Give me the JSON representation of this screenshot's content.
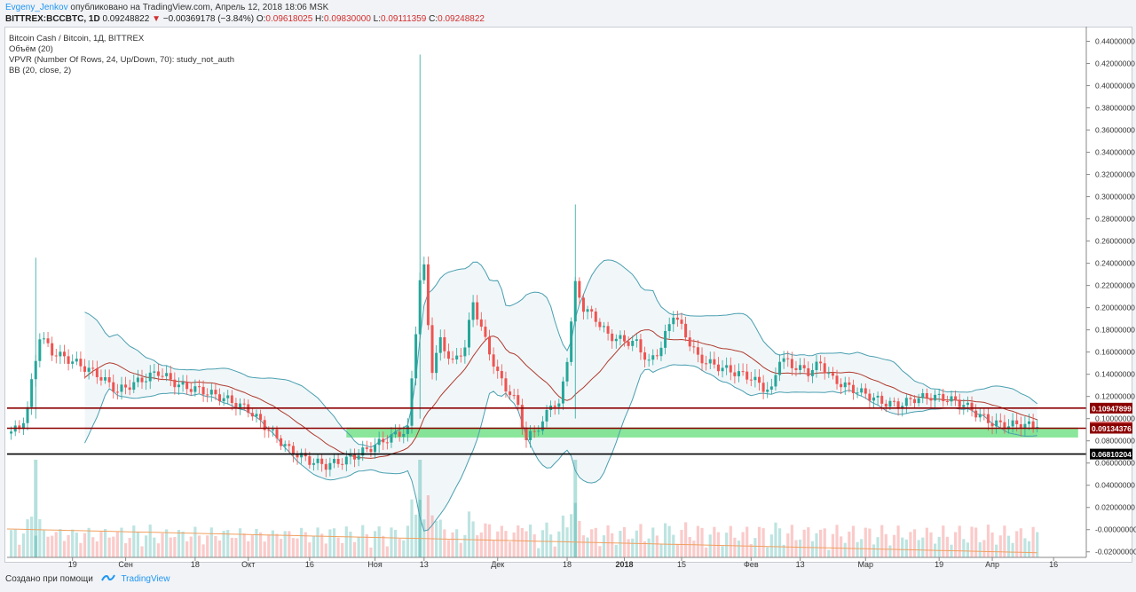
{
  "header": {
    "author": "Evgeny_Jenkov",
    "published": "опубликовано на TradingView.com, Апрель 12, 2018 18:06 MSK",
    "symbol": "BITTREX:BCCBTC, 1D",
    "last": "0.09248822",
    "change": "−0.00369178 (−3.84%)",
    "o_label": "O:",
    "o": "0.09618025",
    "h_label": "H:",
    "h": "0.09830000",
    "l_label": "L:",
    "l": "0.09111359",
    "c_label": "C:",
    "c": "0.09248822"
  },
  "legend": {
    "title": "Bitcoin Cash / Bitcoin, 1Д, BITTREX",
    "volume": "Объём (20)",
    "vpvr": "VPVR (Number Of Rows, 24, Up/Down, 70): study_not_auth",
    "bb": "BB (20, close, 2)"
  },
  "footer": {
    "created": "Создано при помощи",
    "brand": "TradingView"
  },
  "colors": {
    "up": "#26a69a",
    "down": "#ef5350",
    "band": "#4a9fb0",
    "basis": "#b03a2e",
    "hline_red": "#8b0000",
    "hline_black": "#000000",
    "zone": "#4cd964",
    "vol_ma": "#f0a060"
  },
  "chart_data": {
    "type": "candlestick",
    "y_axis": {
      "min": -0.025,
      "max": 0.45,
      "ticks": [
        "0.44000000",
        "0.42000000",
        "0.40000000",
        "0.38000000",
        "0.36000000",
        "0.34000000",
        "0.32000000",
        "0.30000000",
        "0.28000000",
        "0.26000000",
        "0.24000000",
        "0.22000000",
        "0.20000000",
        "0.18000000",
        "0.16000000",
        "0.14000000",
        "0.12000000",
        "0.10000000",
        "0.08000000",
        "0.06000000",
        "0.04000000",
        "0.02000000",
        "-0.00000000",
        "-0.02000000"
      ]
    },
    "x_axis": {
      "range": [
        "2017-08-03",
        "2018-04-24"
      ],
      "ticks": [
        {
          "date": "2017-08-19",
          "label": "19"
        },
        {
          "date": "2017-09-01",
          "label": "Сен"
        },
        {
          "date": "2017-09-18",
          "label": "18"
        },
        {
          "date": "2017-10-01",
          "label": "Окт"
        },
        {
          "date": "2017-10-16",
          "label": "16"
        },
        {
          "date": "2017-11-01",
          "label": "Ноя"
        },
        {
          "date": "2017-11-13",
          "label": "13"
        },
        {
          "date": "2017-12-01",
          "label": "Дек"
        },
        {
          "date": "2017-12-18",
          "label": "18"
        },
        {
          "date": "2018-01-01",
          "label": "2018"
        },
        {
          "date": "2018-01-15",
          "label": "15"
        },
        {
          "date": "2018-02-01",
          "label": "Фев"
        },
        {
          "date": "2018-02-13",
          "label": "13"
        },
        {
          "date": "2018-03-01",
          "label": "Мар"
        },
        {
          "date": "2018-03-19",
          "label": "19"
        },
        {
          "date": "2018-04-01",
          "label": "Апр"
        },
        {
          "date": "2018-04-16",
          "label": "16"
        }
      ]
    },
    "price_labels": [
      {
        "value": 0.10947899,
        "text": "0.10947899",
        "color": "#8b0000"
      },
      {
        "value": 0.09248822,
        "text": "0.09248822",
        "color": "#e57373"
      },
      {
        "value": 0.09134376,
        "text": "0.09134376",
        "color": "#8b0000"
      },
      {
        "value": 0.06810204,
        "text": "0.06810204",
        "color": "#000000"
      }
    ],
    "horizontal_lines": [
      {
        "value": 0.10947899,
        "color": "#8b0000"
      },
      {
        "value": 0.09134376,
        "color": "#8b0000"
      },
      {
        "value": 0.06810204,
        "color": "#000000"
      }
    ],
    "zone": {
      "from_date": "2017-10-25",
      "to_date": "2018-04-22",
      "low": 0.083,
      "high": 0.092
    },
    "keypoints": [
      {
        "date": "2017-08-03",
        "close": 0.09
      },
      {
        "date": "2017-08-06",
        "close": 0.09
      },
      {
        "date": "2017-08-08",
        "close": 0.11
      },
      {
        "date": "2017-08-11",
        "close": 0.175
      },
      {
        "date": "2017-08-14",
        "close": 0.16
      },
      {
        "date": "2017-08-20",
        "close": 0.15
      },
      {
        "date": "2017-08-25",
        "close": 0.14
      },
      {
        "date": "2017-08-30",
        "close": 0.125
      },
      {
        "date": "2017-09-05",
        "close": 0.135
      },
      {
        "date": "2017-09-09",
        "close": 0.142
      },
      {
        "date": "2017-09-14",
        "close": 0.13
      },
      {
        "date": "2017-09-20",
        "close": 0.125
      },
      {
        "date": "2017-09-26",
        "close": 0.117
      },
      {
        "date": "2017-10-01",
        "close": 0.108
      },
      {
        "date": "2017-10-06",
        "close": 0.09
      },
      {
        "date": "2017-10-11",
        "close": 0.072
      },
      {
        "date": "2017-10-16",
        "close": 0.062
      },
      {
        "date": "2017-10-20",
        "close": 0.058
      },
      {
        "date": "2017-10-25",
        "close": 0.063
      },
      {
        "date": "2017-10-30",
        "close": 0.072
      },
      {
        "date": "2017-11-04",
        "close": 0.082
      },
      {
        "date": "2017-11-09",
        "close": 0.09
      },
      {
        "date": "2017-11-11",
        "close": 0.18
      },
      {
        "date": "2017-11-12",
        "close": 0.225
      },
      {
        "date": "2017-11-13",
        "close": 0.235
      },
      {
        "date": "2017-11-14",
        "close": 0.185
      },
      {
        "date": "2017-11-15",
        "close": 0.145
      },
      {
        "date": "2017-11-17",
        "close": 0.17
      },
      {
        "date": "2017-11-20",
        "close": 0.15
      },
      {
        "date": "2017-11-23",
        "close": 0.165
      },
      {
        "date": "2017-11-25",
        "close": 0.205
      },
      {
        "date": "2017-11-28",
        "close": 0.17
      },
      {
        "date": "2017-12-01",
        "close": 0.14
      },
      {
        "date": "2017-12-03",
        "close": 0.128
      },
      {
        "date": "2017-12-06",
        "close": 0.112
      },
      {
        "date": "2017-12-08",
        "close": 0.08
      },
      {
        "date": "2017-12-10",
        "close": 0.09
      },
      {
        "date": "2017-12-12",
        "close": 0.095
      },
      {
        "date": "2017-12-14",
        "close": 0.115
      },
      {
        "date": "2017-12-16",
        "close": 0.11
      },
      {
        "date": "2017-12-18",
        "close": 0.155
      },
      {
        "date": "2017-12-20",
        "close": 0.22
      },
      {
        "date": "2017-12-22",
        "close": 0.2
      },
      {
        "date": "2017-12-25",
        "close": 0.19
      },
      {
        "date": "2017-12-28",
        "close": 0.175
      },
      {
        "date": "2018-01-01",
        "close": 0.17
      },
      {
        "date": "2018-01-04",
        "close": 0.168
      },
      {
        "date": "2018-01-07",
        "close": 0.15
      },
      {
        "date": "2018-01-10",
        "close": 0.165
      },
      {
        "date": "2018-01-13",
        "close": 0.195
      },
      {
        "date": "2018-01-16",
        "close": 0.175
      },
      {
        "date": "2018-01-19",
        "close": 0.155
      },
      {
        "date": "2018-01-23",
        "close": 0.148
      },
      {
        "date": "2018-01-27",
        "close": 0.143
      },
      {
        "date": "2018-02-01",
        "close": 0.137
      },
      {
        "date": "2018-02-04",
        "close": 0.128
      },
      {
        "date": "2018-02-06",
        "close": 0.125
      },
      {
        "date": "2018-02-08",
        "close": 0.155
      },
      {
        "date": "2018-02-11",
        "close": 0.148
      },
      {
        "date": "2018-02-15",
        "close": 0.142
      },
      {
        "date": "2018-02-18",
        "close": 0.15
      },
      {
        "date": "2018-02-21",
        "close": 0.135
      },
      {
        "date": "2018-02-25",
        "close": 0.128
      },
      {
        "date": "2018-03-01",
        "close": 0.122
      },
      {
        "date": "2018-03-05",
        "close": 0.115
      },
      {
        "date": "2018-03-09",
        "close": 0.112
      },
      {
        "date": "2018-03-13",
        "close": 0.118
      },
      {
        "date": "2018-03-17",
        "close": 0.12
      },
      {
        "date": "2018-03-21",
        "close": 0.118
      },
      {
        "date": "2018-03-25",
        "close": 0.113
      },
      {
        "date": "2018-03-28",
        "close": 0.105
      },
      {
        "date": "2018-04-01",
        "close": 0.096
      },
      {
        "date": "2018-04-04",
        "close": 0.094
      },
      {
        "date": "2018-04-08",
        "close": 0.095
      },
      {
        "date": "2018-04-12",
        "close": 0.0925
      }
    ],
    "spikes": [
      {
        "date": "2017-08-10",
        "high": 0.245
      },
      {
        "date": "2017-11-12",
        "high": 0.428
      },
      {
        "date": "2017-12-20",
        "high": 0.293
      }
    ],
    "bollinger": {
      "period": 20,
      "mult": 2
    }
  }
}
